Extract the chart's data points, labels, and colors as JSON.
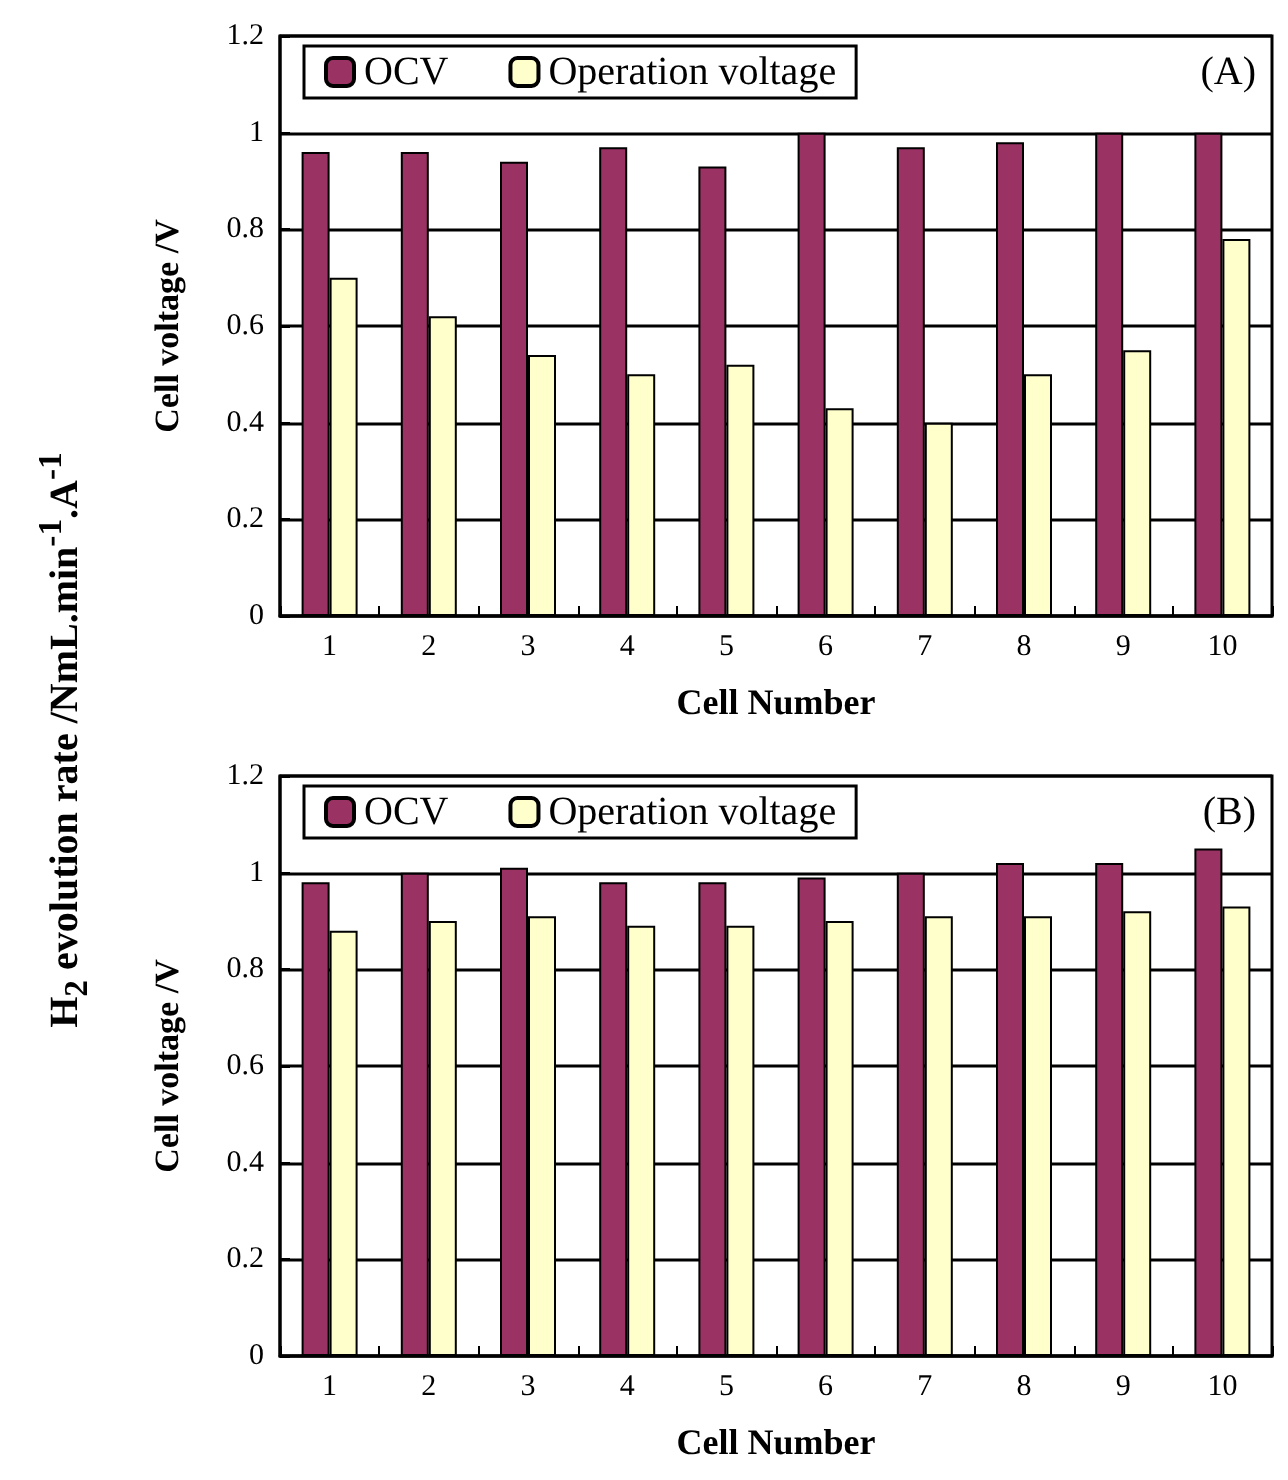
{
  "chart_data": [
    {
      "type": "bar",
      "xlabel": "Cell Number",
      "ylabel": "Cell voltage /V",
      "annotations": [
        "(A)",
        "H$_{2}$ evolution rate /NmL.min$^{-1}$.A$^{-1}$"
      ],
      "categories": [
        "1",
        "2",
        "3",
        "4",
        "5",
        "6",
        "7",
        "8",
        "9",
        "10"
      ],
      "series": [
        {
          "name": "OCV",
          "color": "#9b3264",
          "values": [
            0.96,
            0.96,
            0.94,
            0.97,
            0.93,
            1.0,
            0.97,
            0.98,
            1.0,
            1.0
          ]
        },
        {
          "name": "Operation voltage",
          "color": "#ffffcc",
          "values": [
            0.7,
            0.62,
            0.54,
            0.5,
            0.52,
            0.43,
            0.4,
            0.5,
            0.55,
            0.78
          ]
        }
      ],
      "ylim": [
        0,
        1.2
      ],
      "yticks": [
        0,
        0.2,
        0.4,
        0.6,
        0.8,
        1,
        1.2
      ],
      "grid": "y",
      "legend": "top left"
    },
    {
      "type": "bar",
      "xlabel": "Cell Number",
      "ylabel": "Cell voltage /V",
      "annotations": [
        "(B)"
      ],
      "categories": [
        "1",
        "2",
        "3",
        "4",
        "5",
        "6",
        "7",
        "8",
        "9",
        "10"
      ],
      "series": [
        {
          "name": "OCV",
          "color": "#9b3264",
          "values": [
            0.98,
            1.0,
            1.01,
            0.98,
            0.98,
            0.99,
            1.0,
            1.02,
            1.02,
            1.05
          ]
        },
        {
          "name": "Operation voltage",
          "color": "#ffffcc",
          "values": [
            0.88,
            0.9,
            0.91,
            0.89,
            0.89,
            0.9,
            0.91,
            0.91,
            0.92,
            0.93
          ]
        }
      ],
      "ylim": [
        0,
        1.2
      ],
      "yticks": [
        0,
        0.2,
        0.4,
        0.6,
        0.8,
        1,
        1.2
      ],
      "grid": "y",
      "legend": "top left"
    }
  ]
}
